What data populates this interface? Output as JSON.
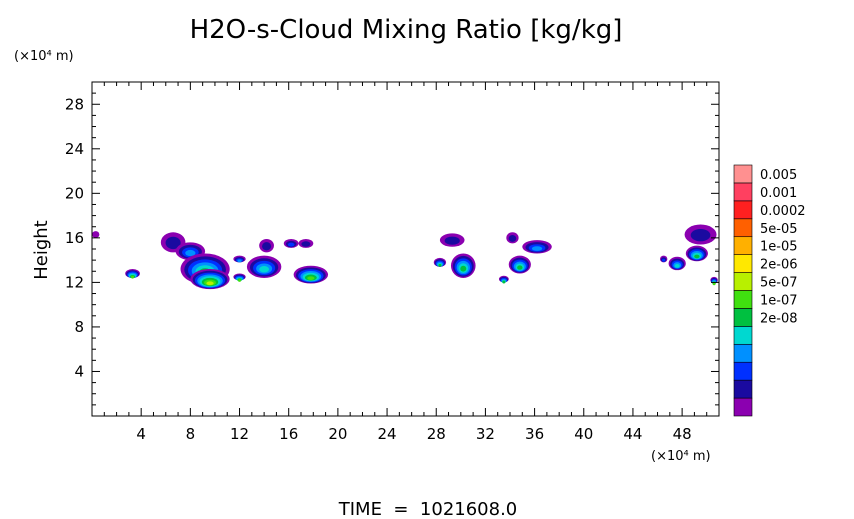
{
  "chart_data": {
    "type": "heatmap",
    "title": "H2O-s-Cloud Mixing Ratio [kg/kg]",
    "xlabel": "",
    "ylabel": "Height",
    "x_unit": "(×10⁴ m)",
    "y_unit": "(×10⁴ m)",
    "xlim": [
      0,
      51
    ],
    "ylim": [
      0,
      30
    ],
    "x_ticks": [
      "4",
      "8",
      "12",
      "16",
      "20",
      "24",
      "28",
      "32",
      "36",
      "40",
      "44",
      "48"
    ],
    "x_tick_values": [
      4,
      8,
      12,
      16,
      20,
      24,
      28,
      32,
      36,
      40,
      44,
      48
    ],
    "y_ticks": [
      "4",
      "8",
      "12",
      "16",
      "20",
      "24",
      "28"
    ],
    "y_tick_values": [
      4,
      8,
      12,
      16,
      20,
      24,
      28
    ],
    "footer": "TIME  =  1021608.0",
    "legend": {
      "placement": "right",
      "labels": [
        "0.005",
        "0.001",
        "0.0002",
        "5e-05",
        "1e-05",
        "2e-06",
        "5e-07",
        "1e-07",
        "2e-08"
      ],
      "colors": [
        "#8b00b0",
        "#1a0aa0",
        "#0030ff",
        "#0090ff",
        "#00d8d0",
        "#00c040",
        "#40e010",
        "#b8f000",
        "#ffe800",
        "#ffb000",
        "#ff6000",
        "#ff2020",
        "#ff4060",
        "#ff9090"
      ]
    },
    "cloud_cells": [
      {
        "x": 0.3,
        "y": 16.3,
        "rx": 0.3,
        "ry": 0.3,
        "level": 0
      },
      {
        "x": 3.3,
        "y": 12.8,
        "rx": 0.6,
        "ry": 0.4,
        "level": 6
      },
      {
        "x": 6.6,
        "y": 15.6,
        "rx": 1.0,
        "ry": 0.9,
        "level": 1
      },
      {
        "x": 8.0,
        "y": 14.8,
        "rx": 1.2,
        "ry": 0.8,
        "level": 3
      },
      {
        "x": 9.2,
        "y": 13.2,
        "rx": 2.0,
        "ry": 1.4,
        "level": 5
      },
      {
        "x": 9.6,
        "y": 12.3,
        "rx": 1.6,
        "ry": 0.9,
        "level": 7
      },
      {
        "x": 12.0,
        "y": 14.1,
        "rx": 0.5,
        "ry": 0.3,
        "level": 3
      },
      {
        "x": 12.0,
        "y": 12.5,
        "rx": 0.5,
        "ry": 0.3,
        "level": 6
      },
      {
        "x": 14.0,
        "y": 13.4,
        "rx": 1.4,
        "ry": 1.0,
        "level": 4
      },
      {
        "x": 14.2,
        "y": 15.3,
        "rx": 0.6,
        "ry": 0.6,
        "level": 1
      },
      {
        "x": 16.2,
        "y": 15.5,
        "rx": 0.6,
        "ry": 0.4,
        "level": 2
      },
      {
        "x": 17.4,
        "y": 15.5,
        "rx": 0.6,
        "ry": 0.4,
        "level": 1
      },
      {
        "x": 17.8,
        "y": 12.7,
        "rx": 1.4,
        "ry": 0.8,
        "level": 6
      },
      {
        "x": 29.3,
        "y": 15.8,
        "rx": 1.0,
        "ry": 0.6,
        "level": 1
      },
      {
        "x": 28.3,
        "y": 13.8,
        "rx": 0.5,
        "ry": 0.4,
        "level": 5
      },
      {
        "x": 30.2,
        "y": 13.5,
        "rx": 1.0,
        "ry": 1.1,
        "level": 5
      },
      {
        "x": 34.2,
        "y": 16.0,
        "rx": 0.5,
        "ry": 0.5,
        "level": 1
      },
      {
        "x": 36.2,
        "y": 15.2,
        "rx": 1.2,
        "ry": 0.6,
        "level": 3
      },
      {
        "x": 34.8,
        "y": 13.6,
        "rx": 0.9,
        "ry": 0.8,
        "level": 5
      },
      {
        "x": 33.5,
        "y": 12.3,
        "rx": 0.4,
        "ry": 0.3,
        "level": 5
      },
      {
        "x": 46.5,
        "y": 14.1,
        "rx": 0.3,
        "ry": 0.3,
        "level": 2
      },
      {
        "x": 47.6,
        "y": 13.7,
        "rx": 0.7,
        "ry": 0.6,
        "level": 4
      },
      {
        "x": 49.5,
        "y": 16.3,
        "rx": 1.3,
        "ry": 0.9,
        "level": 1
      },
      {
        "x": 49.2,
        "y": 14.6,
        "rx": 0.9,
        "ry": 0.7,
        "level": 5
      },
      {
        "x": 50.6,
        "y": 12.2,
        "rx": 0.3,
        "ry": 0.3,
        "level": 6
      }
    ]
  }
}
